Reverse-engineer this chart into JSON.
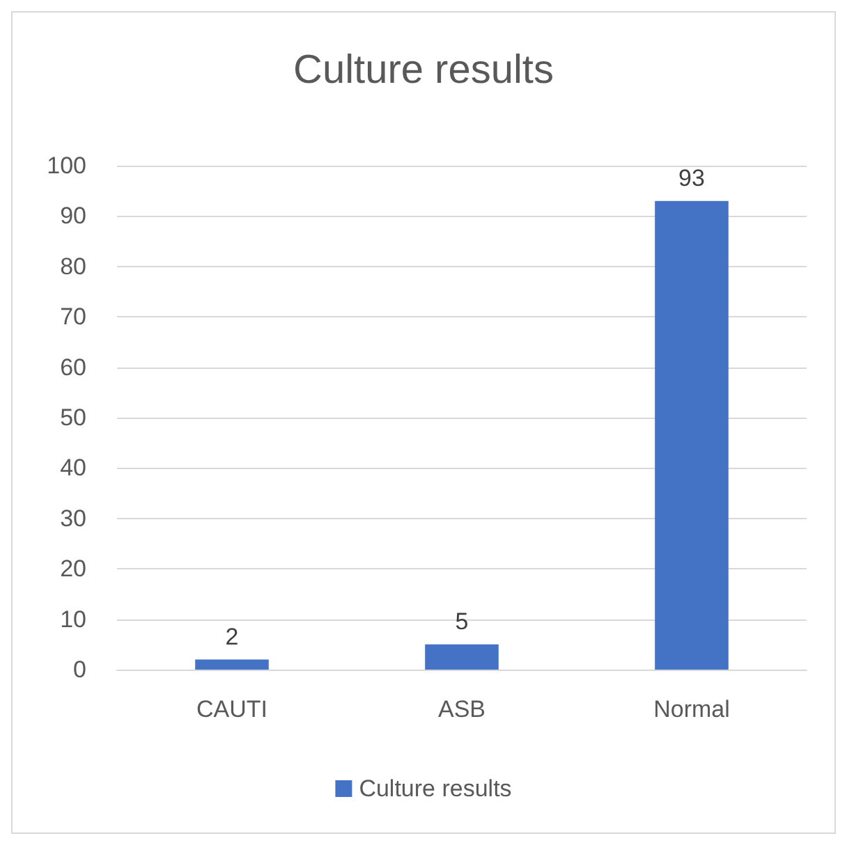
{
  "chart_data": {
    "type": "bar",
    "title": "Culture results",
    "categories": [
      "CAUTI",
      "ASB",
      "Normal"
    ],
    "series": [
      {
        "name": "Culture results",
        "color": "#4472c4",
        "values": [
          2,
          5,
          93
        ]
      }
    ],
    "ylim": [
      0,
      100
    ],
    "yticks": [
      0,
      10,
      20,
      30,
      40,
      50,
      60,
      70,
      80,
      90,
      100
    ],
    "grid": "y",
    "legend": "bottom",
    "data_labels": true
  }
}
